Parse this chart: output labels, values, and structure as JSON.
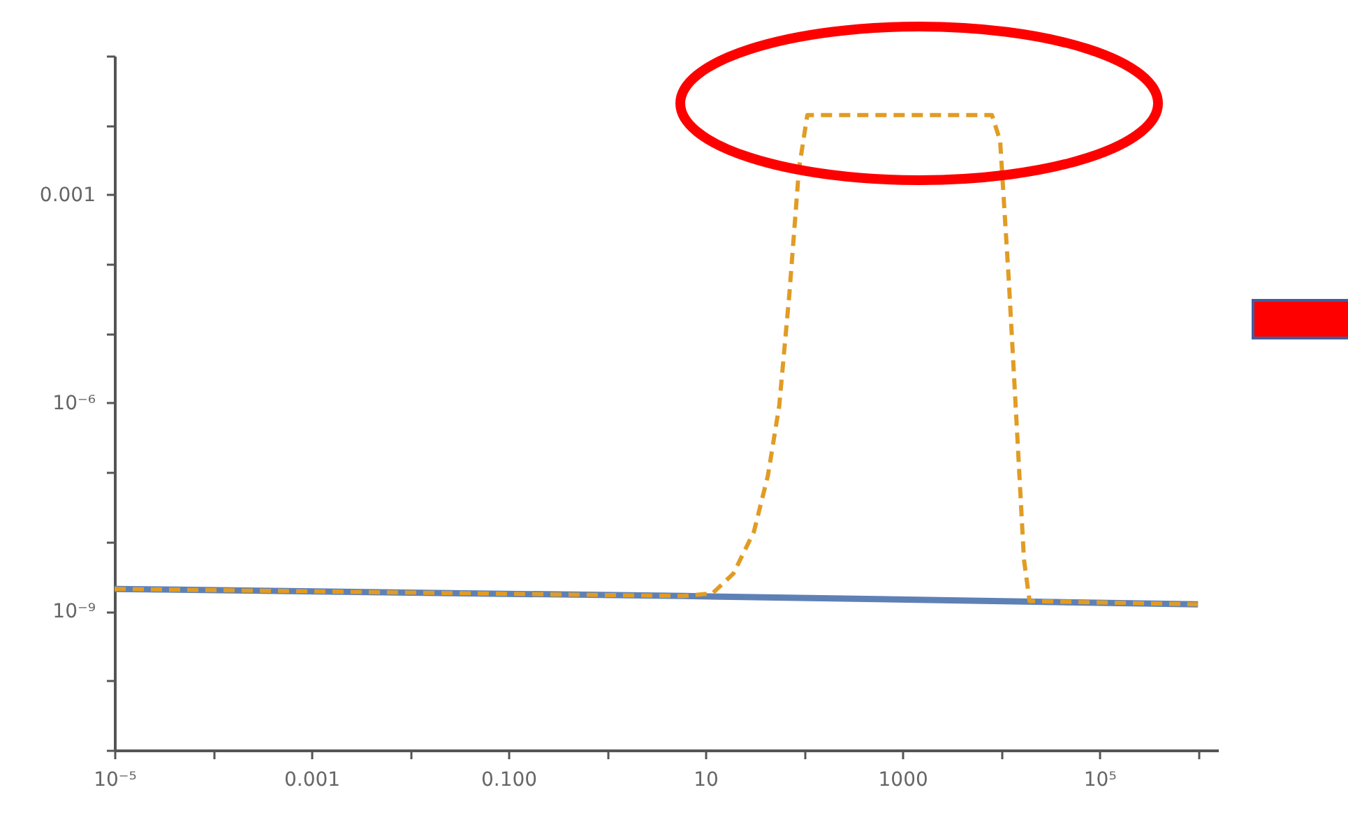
{
  "chart_data": {
    "type": "line",
    "log": "xy",
    "grid": false,
    "xlim": [
      1e-05,
      1600000.0
    ],
    "xticks": [
      {
        "value": 1e-05,
        "label": "10⁻⁵"
      },
      {
        "value": 0.0001,
        "label": null
      },
      {
        "value": 0.001,
        "label": "0.001"
      },
      {
        "value": 0.01,
        "label": null
      },
      {
        "value": 0.1,
        "label": "0.100"
      },
      {
        "value": 1,
        "label": null
      },
      10,
      {
        "value": 100,
        "label": null
      },
      1000,
      {
        "value": 10000,
        "label": null
      },
      {
        "value": 100000,
        "label": "10⁵"
      },
      {
        "value": 1000000,
        "label": null
      }
    ],
    "ylim": [
      1e-11,
      0.1
    ],
    "yticks": [
      {
        "value": 1e-11,
        "label": null
      },
      {
        "value": 1e-10,
        "label": null
      },
      {
        "value": 1e-09,
        "label": "10⁻⁹"
      },
      {
        "value": 1e-08,
        "label": null
      },
      {
        "value": 1e-07,
        "label": null
      },
      {
        "value": 1e-06,
        "label": "10⁻⁶"
      },
      {
        "value": 1e-05,
        "label": null
      },
      {
        "value": 0.0001,
        "label": null
      },
      0.001,
      {
        "value": 0.01,
        "label": null
      },
      {
        "value": 0.1,
        "label": null
      }
    ],
    "series": [
      {
        "color": "#5e81b5",
        "line_style": "solid",
        "x": [
          1e-05,
          6.1,
          1000000
        ],
        "values": [
          2.1e-09,
          1.66e-09,
          1.26e-09
        ]
      },
      {
        "color": "#e19c24",
        "line_style": "dashed",
        "x": [
          1e-05,
          6.1,
          11.8,
          19.2,
          31,
          43,
          56,
          71,
          89,
          108,
          8100,
          9800,
          12000,
          14600,
          17100,
          19500,
          1000000
        ],
        "values": [
          2.1e-09,
          1.66e-09,
          1.82e-09,
          3.5e-09,
          1.4e-08,
          9e-08,
          9e-07,
          3.7e-05,
          0.0024,
          0.014,
          0.014,
          0.006,
          5.9e-05,
          3.6e-07,
          5.6e-09,
          1.4e-09,
          1.26e-09
        ]
      }
    ]
  }
}
